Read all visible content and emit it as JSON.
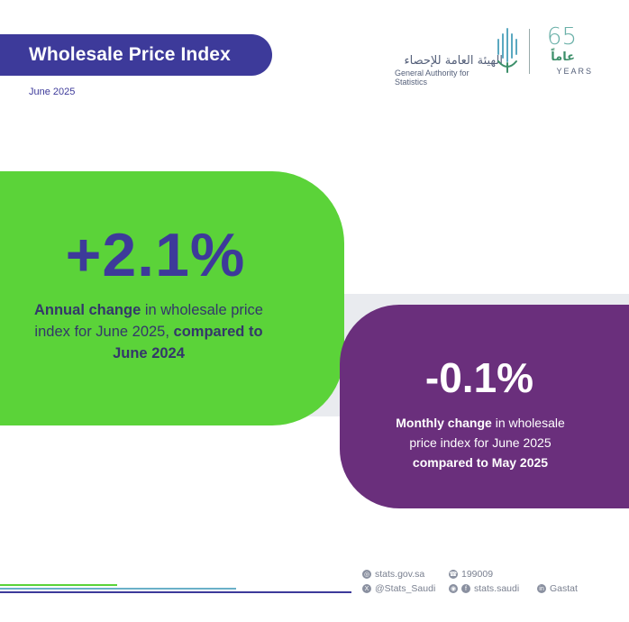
{
  "header": {
    "title": "Wholesale Price Index",
    "date": "June 2025"
  },
  "logo": {
    "arabic_name": "الهيئة العامة للإحصاء",
    "english_name": "General Authority for Statistics",
    "anniversary_number": "65",
    "anniversary_arabic": "عاماً",
    "anniversary_years": "YEARS"
  },
  "annual": {
    "value": "+2.1%",
    "desc_bold": "Annual change",
    "desc_mid": " in wholesale price index for June 2025, ",
    "desc_bold2": "compared to June 2024"
  },
  "monthly": {
    "value": "-0.1%",
    "desc_bold": "Monthly change",
    "desc_mid": " in wholesale price index for June 2025 ",
    "desc_bold2": "compared to May 2025"
  },
  "contacts": {
    "website": "stats.gov.sa",
    "phone": "199009",
    "twitter": "@Stats_Saudi",
    "facebook": "stats.saudi",
    "linkedin": "Gastat"
  },
  "colors": {
    "brand_purple": "#3d3a9a",
    "green": "#5bd339",
    "violet": "#6a2f7c"
  }
}
